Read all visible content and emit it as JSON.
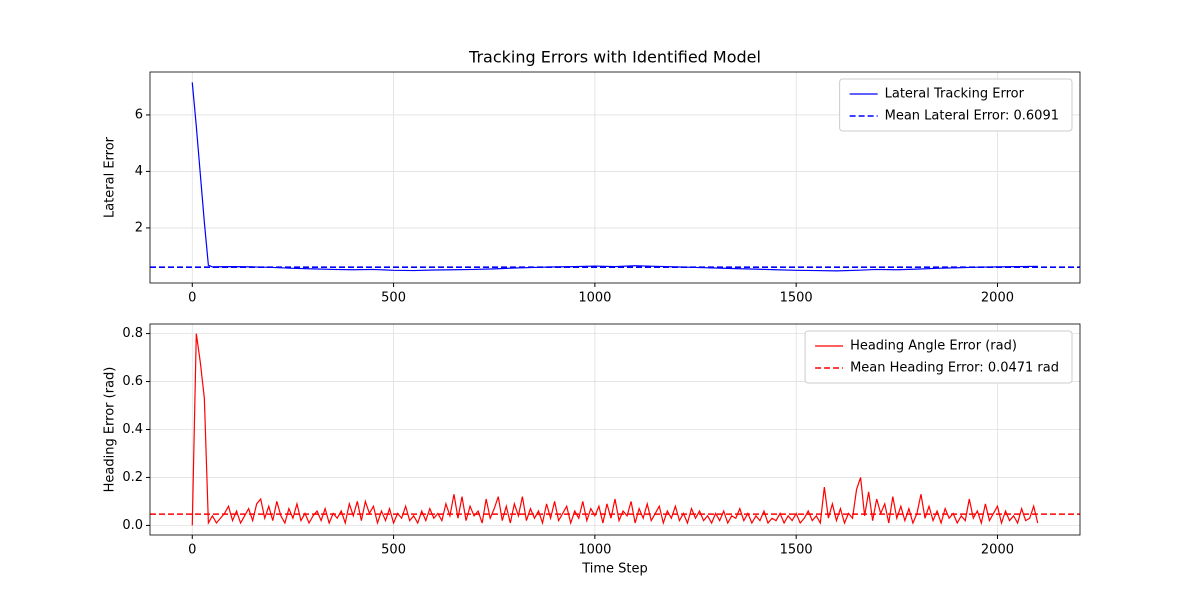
{
  "chart_data": [
    {
      "type": "line",
      "title": "Tracking Errors with Identified Model",
      "ylabel": "Lateral Error",
      "x": [
        0,
        10,
        20,
        30,
        40,
        50,
        100,
        150,
        200,
        250,
        300,
        350,
        400,
        450,
        500,
        550,
        600,
        650,
        700,
        750,
        800,
        850,
        900,
        950,
        1000,
        1050,
        1100,
        1150,
        1200,
        1250,
        1300,
        1350,
        1400,
        1450,
        1500,
        1550,
        1600,
        1650,
        1700,
        1750,
        1800,
        1850,
        1900,
        1950,
        2000,
        2050,
        2100
      ],
      "series": [
        {
          "name": "Lateral Tracking Error",
          "color": "#0000ff",
          "values": [
            7.15,
            5.6,
            3.9,
            2.2,
            0.68,
            0.62,
            0.63,
            0.62,
            0.6,
            0.57,
            0.55,
            0.53,
            0.52,
            0.53,
            0.5,
            0.49,
            0.51,
            0.52,
            0.53,
            0.55,
            0.58,
            0.6,
            0.62,
            0.63,
            0.65,
            0.63,
            0.66,
            0.64,
            0.62,
            0.6,
            0.58,
            0.56,
            0.54,
            0.52,
            0.5,
            0.49,
            0.48,
            0.5,
            0.53,
            0.52,
            0.54,
            0.57,
            0.59,
            0.61,
            0.62,
            0.63,
            0.64
          ]
        }
      ],
      "hlines": [
        {
          "name": "Mean Lateral Error: 0.6091",
          "value": 0.6091,
          "color": "#0000ff",
          "dashed": true
        }
      ],
      "xlim": [
        -105,
        2205
      ],
      "xticks": [
        0,
        500,
        1000,
        1500,
        2000
      ],
      "ylim": [
        0.05,
        7.52
      ],
      "yticks": [
        2,
        4,
        6
      ],
      "grid": true,
      "legend": "upper-right"
    },
    {
      "type": "line",
      "xlabel": "Time Step",
      "ylabel": "Heading Error (rad)",
      "x": [
        0,
        10,
        20,
        30,
        40,
        50,
        60,
        70,
        80,
        90,
        100,
        110,
        120,
        130,
        140,
        150,
        160,
        170,
        180,
        190,
        200,
        210,
        220,
        230,
        240,
        250,
        260,
        270,
        280,
        290,
        300,
        310,
        320,
        330,
        340,
        350,
        360,
        370,
        380,
        390,
        400,
        410,
        420,
        430,
        440,
        450,
        460,
        470,
        480,
        490,
        500,
        510,
        520,
        530,
        540,
        550,
        560,
        570,
        580,
        590,
        600,
        610,
        620,
        630,
        640,
        650,
        660,
        670,
        680,
        690,
        700,
        710,
        720,
        730,
        740,
        750,
        760,
        770,
        780,
        790,
        800,
        810,
        820,
        830,
        840,
        850,
        860,
        870,
        880,
        890,
        900,
        910,
        920,
        930,
        940,
        950,
        960,
        970,
        980,
        990,
        1000,
        1010,
        1020,
        1030,
        1040,
        1050,
        1060,
        1070,
        1080,
        1090,
        1100,
        1110,
        1120,
        1130,
        1140,
        1150,
        1160,
        1170,
        1180,
        1190,
        1200,
        1210,
        1220,
        1230,
        1240,
        1250,
        1260,
        1270,
        1280,
        1290,
        1300,
        1310,
        1320,
        1330,
        1340,
        1350,
        1360,
        1370,
        1380,
        1390,
        1400,
        1410,
        1420,
        1430,
        1440,
        1450,
        1460,
        1470,
        1480,
        1490,
        1500,
        1510,
        1520,
        1530,
        1540,
        1550,
        1560,
        1570,
        1580,
        1590,
        1600,
        1610,
        1620,
        1630,
        1640,
        1650,
        1660,
        1670,
        1680,
        1690,
        1700,
        1710,
        1720,
        1730,
        1740,
        1750,
        1760,
        1770,
        1780,
        1790,
        1800,
        1810,
        1820,
        1830,
        1840,
        1850,
        1860,
        1870,
        1880,
        1890,
        1900,
        1910,
        1920,
        1930,
        1940,
        1950,
        1960,
        1970,
        1980,
        1990,
        2000,
        2010,
        2020,
        2030,
        2040,
        2050,
        2060,
        2070,
        2080,
        2090,
        2100
      ],
      "series": [
        {
          "name": "Heading Angle Error (rad)",
          "color": "#ff0000",
          "values": [
            0.0,
            0.8,
            0.68,
            0.53,
            0.01,
            0.04,
            0.01,
            0.03,
            0.05,
            0.08,
            0.02,
            0.06,
            0.01,
            0.04,
            0.07,
            0.02,
            0.09,
            0.11,
            0.03,
            0.08,
            0.02,
            0.1,
            0.04,
            0.01,
            0.07,
            0.03,
            0.09,
            0.02,
            0.05,
            0.01,
            0.04,
            0.06,
            0.02,
            0.07,
            0.01,
            0.05,
            0.03,
            0.06,
            0.01,
            0.09,
            0.04,
            0.1,
            0.02,
            0.1,
            0.05,
            0.08,
            0.01,
            0.06,
            0.02,
            0.07,
            0.01,
            0.05,
            0.03,
            0.08,
            0.02,
            0.04,
            0.01,
            0.06,
            0.02,
            0.07,
            0.03,
            0.05,
            0.02,
            0.09,
            0.04,
            0.13,
            0.03,
            0.12,
            0.02,
            0.08,
            0.04,
            0.06,
            0.01,
            0.11,
            0.03,
            0.07,
            0.12,
            0.02,
            0.08,
            0.01,
            0.09,
            0.04,
            0.12,
            0.02,
            0.07,
            0.03,
            0.06,
            0.01,
            0.09,
            0.03,
            0.1,
            0.02,
            0.05,
            0.08,
            0.01,
            0.06,
            0.03,
            0.1,
            0.02,
            0.07,
            0.04,
            0.08,
            0.01,
            0.09,
            0.03,
            0.11,
            0.02,
            0.06,
            0.04,
            0.1,
            0.01,
            0.07,
            0.03,
            0.09,
            0.02,
            0.05,
            0.08,
            0.01,
            0.06,
            0.03,
            0.08,
            0.02,
            0.05,
            0.01,
            0.07,
            0.03,
            0.06,
            0.02,
            0.04,
            0.01,
            0.05,
            0.02,
            0.06,
            0.01,
            0.04,
            0.03,
            0.07,
            0.02,
            0.05,
            0.01,
            0.04,
            0.02,
            0.06,
            0.01,
            0.03,
            0.02,
            0.05,
            0.01,
            0.04,
            0.02,
            0.05,
            0.01,
            0.03,
            0.06,
            0.02,
            0.04,
            0.01,
            0.16,
            0.03,
            0.09,
            0.02,
            0.07,
            0.01,
            0.05,
            0.03,
            0.15,
            0.2,
            0.04,
            0.14,
            0.02,
            0.11,
            0.05,
            0.09,
            0.01,
            0.12,
            0.03,
            0.08,
            0.02,
            0.07,
            0.01,
            0.05,
            0.13,
            0.03,
            0.08,
            0.02,
            0.06,
            0.01,
            0.07,
            0.03,
            0.05,
            0.01,
            0.04,
            0.02,
            0.11,
            0.03,
            0.06,
            0.01,
            0.09,
            0.02,
            0.05,
            0.08,
            0.01,
            0.06,
            0.02,
            0.04,
            0.01,
            0.07,
            0.02,
            0.03,
            0.08,
            0.01
          ]
        }
      ],
      "hlines": [
        {
          "name": "Mean Heading Error: 0.0471 rad",
          "value": 0.0471,
          "color": "#ff0000",
          "dashed": true
        }
      ],
      "xlim": [
        -105,
        2205
      ],
      "xticks": [
        0,
        500,
        1000,
        1500,
        2000
      ],
      "ylim": [
        -0.04,
        0.84
      ],
      "yticks": [
        {
          "value": 0,
          "label": "0.0"
        },
        0.2,
        0.4,
        0.6,
        0.8
      ],
      "grid": true,
      "legend": "upper-right"
    }
  ]
}
